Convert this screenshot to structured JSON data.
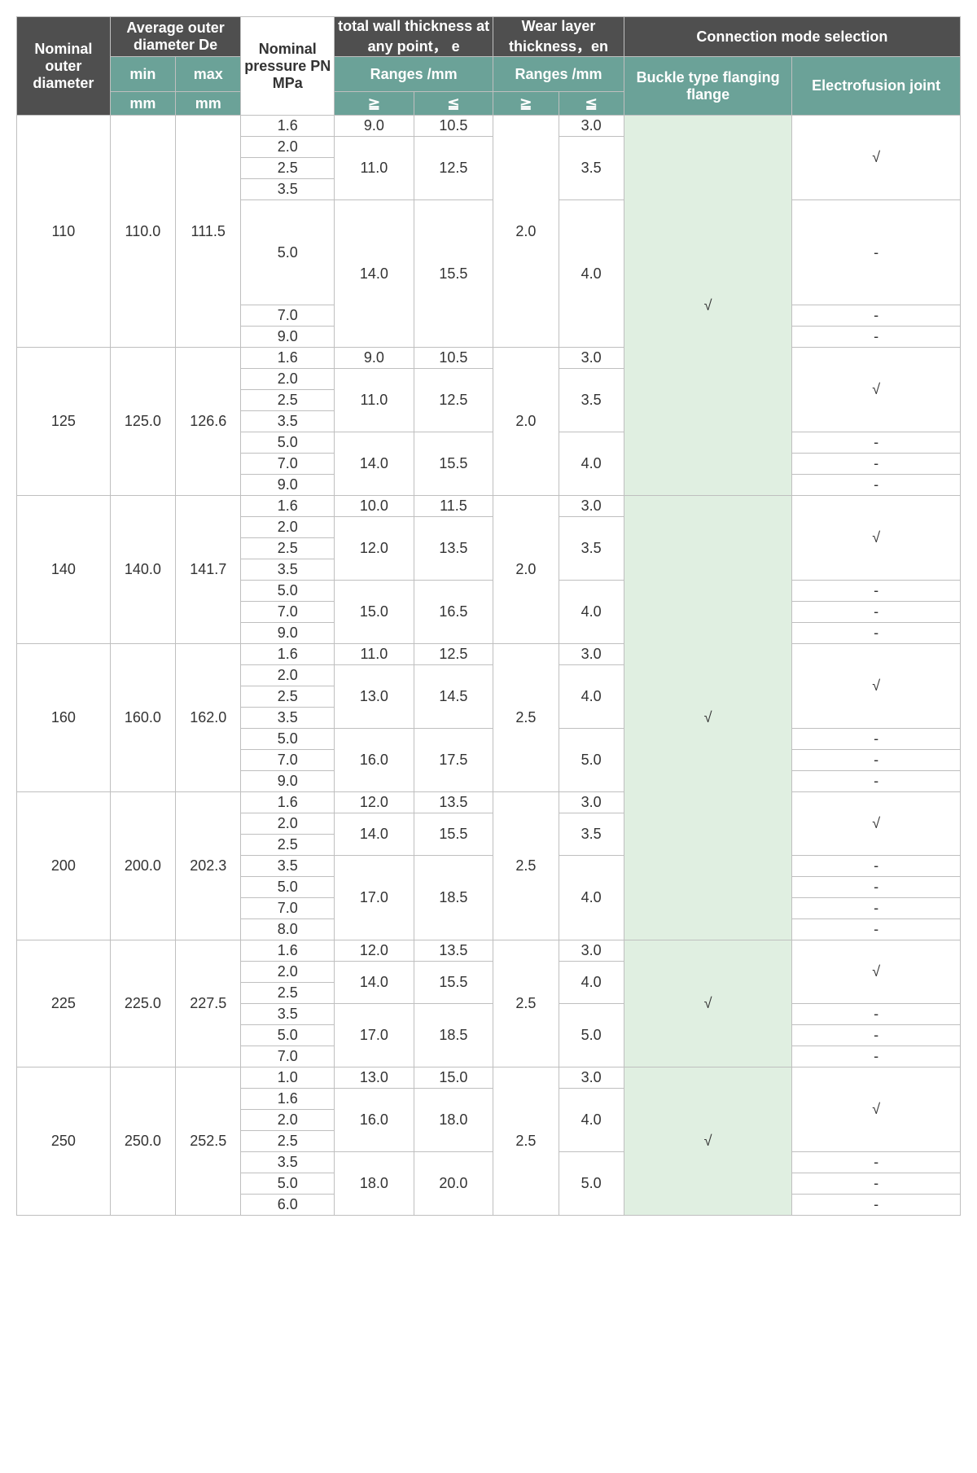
{
  "colors": {
    "header_gray": "#4f4f4f",
    "header_teal": "#6ba298",
    "light_green": "#e0efe1",
    "border": "#bfbfbf",
    "text": "#333333",
    "header_text": "#ffffff"
  },
  "headers": {
    "nominal_outer_diameter": "Nominal outer diameter",
    "avg_outer_diameter": "Average outer diameter De",
    "min": "min",
    "max": "max",
    "mm": "mm",
    "nominal_pressure": "Nominal pressure PN MPa",
    "total_wall": "total wall thickness at any point， e",
    "ranges_mm": "Ranges /mm",
    "wear_layer": "Wear layer thickness，en",
    "connection_mode": "Connection mode selection",
    "buckle": "Buckle type flanging flange",
    "electro": "Electrofusion joint",
    "ge": "≧",
    "le": "≦"
  },
  "check": "√",
  "dash": "-",
  "rows": [
    {
      "nod": "110",
      "min": "110.0",
      "max": "111.5",
      "pressures": [
        "1.6",
        "2.0",
        "2.5",
        "3.5",
        "5.0",
        "7.0",
        "9.0"
      ],
      "wall": [
        [
          "9.0",
          "10.5",
          1
        ],
        [
          "11.0",
          "12.5",
          3
        ],
        [
          "14.0",
          "15.5",
          3
        ]
      ],
      "wear_ge": "2.0",
      "wear_le": [
        [
          "3.0",
          1
        ],
        [
          "3.5",
          3
        ],
        [
          "4.0",
          3
        ]
      ],
      "electro": [
        [
          "√",
          4
        ],
        [
          "-",
          1
        ],
        [
          "-",
          1
        ],
        [
          "-",
          1
        ]
      ],
      "row50": true
    },
    {
      "nod": "125",
      "min": "125.0",
      "max": "126.6",
      "pressures": [
        "1.6",
        "2.0",
        "2.5",
        "3.5",
        "5.0",
        "7.0",
        "9.0"
      ],
      "wall": [
        [
          "9.0",
          "10.5",
          1
        ],
        [
          "11.0",
          "12.5",
          3
        ],
        [
          "14.0",
          "15.5",
          3
        ]
      ],
      "wear_ge": "2.0",
      "wear_le": [
        [
          "3.0",
          1
        ],
        [
          "3.5",
          3
        ],
        [
          "4.0",
          3
        ]
      ],
      "electro": [
        [
          "√",
          4
        ],
        [
          "-",
          1
        ],
        [
          "-",
          1
        ],
        [
          "-",
          1
        ]
      ]
    },
    {
      "nod": "140",
      "min": "140.0",
      "max": "141.7",
      "pressures": [
        "1.6",
        "2.0",
        "2.5",
        "3.5",
        "5.0",
        "7.0",
        "9.0"
      ],
      "wall": [
        [
          "10.0",
          "11.5",
          1
        ],
        [
          "12.0",
          "13.5",
          3
        ],
        [
          "15.0",
          "16.5",
          3
        ]
      ],
      "wear_ge": "2.0",
      "wear_le": [
        [
          "3.0",
          1
        ],
        [
          "3.5",
          3
        ],
        [
          "4.0",
          3
        ]
      ],
      "electro": [
        [
          "√",
          4
        ],
        [
          "-",
          1
        ],
        [
          "-",
          1
        ],
        [
          "-",
          1
        ]
      ]
    },
    {
      "nod": "160",
      "min": "160.0",
      "max": "162.0",
      "pressures": [
        "1.6",
        "2.0",
        "2.5",
        "3.5",
        "5.0",
        "7.0",
        "9.0"
      ],
      "wall": [
        [
          "11.0",
          "12.5",
          1
        ],
        [
          "13.0",
          "14.5",
          3
        ],
        [
          "16.0",
          "17.5",
          3
        ]
      ],
      "wear_ge": "2.5",
      "wear_le": [
        [
          "3.0",
          1
        ],
        [
          "4.0",
          3
        ],
        [
          "5.0",
          3
        ]
      ],
      "electro": [
        [
          "√",
          4
        ],
        [
          "-",
          1
        ],
        [
          "-",
          1
        ],
        [
          "-",
          1
        ]
      ]
    },
    {
      "nod": "200",
      "min": "200.0",
      "max": "202.3",
      "pressures": [
        "1.6",
        "2.0",
        "2.5",
        "3.5",
        "5.0",
        "7.0",
        "8.0"
      ],
      "wall": [
        [
          "12.0",
          "13.5",
          1
        ],
        [
          "14.0",
          "15.5",
          2
        ],
        [
          "17.0",
          "18.5",
          4
        ]
      ],
      "wear_ge": "2.5",
      "wear_le": [
        [
          "3.0",
          1
        ],
        [
          "3.5",
          2
        ],
        [
          "4.0",
          4
        ]
      ],
      "electro": [
        [
          "√",
          3
        ],
        [
          "-",
          1
        ],
        [
          "-",
          1
        ],
        [
          "-",
          1
        ],
        [
          "-",
          1
        ]
      ]
    },
    {
      "nod": "225",
      "min": "225.0",
      "max": "227.5",
      "pressures": [
        "1.6",
        "2.0",
        "2.5",
        "3.5",
        "5.0",
        "7.0"
      ],
      "wall": [
        [
          "12.0",
          "13.5",
          1
        ],
        [
          "14.0",
          "15.5",
          2
        ],
        [
          "17.0",
          "18.5",
          3
        ]
      ],
      "wear_ge": "2.5",
      "wear_le": [
        [
          "3.0",
          1
        ],
        [
          "4.0",
          2
        ],
        [
          "5.0",
          3
        ]
      ],
      "electro": [
        [
          "√",
          3
        ],
        [
          "-",
          1
        ],
        [
          "-",
          1
        ],
        [
          "-",
          1
        ]
      ],
      "own_buckle": true
    },
    {
      "nod": "250",
      "min": "250.0",
      "max": "252.5",
      "pressures": [
        "1.0",
        "1.6",
        "2.0",
        "2.5",
        "3.5",
        "5.0",
        "6.0"
      ],
      "wall": [
        [
          "13.0",
          "15.0",
          1
        ],
        [
          "16.0",
          "18.0",
          3
        ],
        [
          "18.0",
          "20.0",
          3
        ]
      ],
      "wear_ge": "2.5",
      "wear_le": [
        [
          "3.0",
          1
        ],
        [
          "4.0",
          3
        ],
        [
          "5.0",
          3
        ]
      ],
      "electro": [
        [
          "√",
          4
        ],
        [
          "-",
          1
        ],
        [
          "-",
          1
        ],
        [
          "-",
          1
        ]
      ],
      "own_buckle": true
    }
  ],
  "buckle_groups": [
    {
      "span_rows": 2,
      "label": "√",
      "style": "tall"
    },
    {
      "span_rows": 3,
      "label": "√"
    }
  ]
}
